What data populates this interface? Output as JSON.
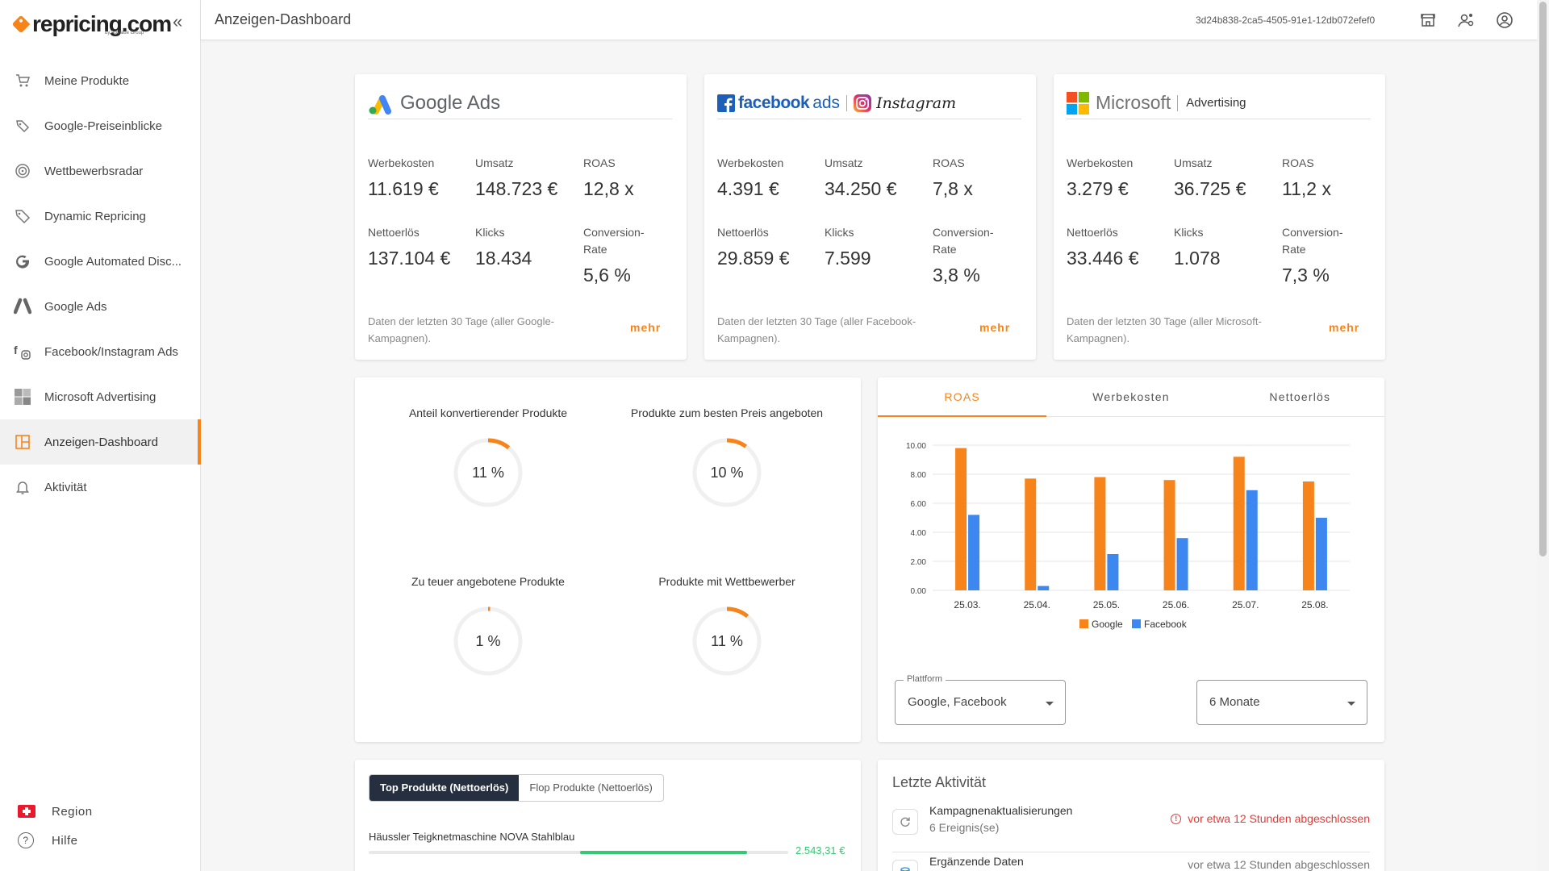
{
  "brand": {
    "name": "repricing.com",
    "sub": "by AdValue Group"
  },
  "sidebar": {
    "items": [
      {
        "label": "Meine Produkte",
        "icon": "cart-icon"
      },
      {
        "label": "Google-Preiseinblicke",
        "icon": "price-tags-icon"
      },
      {
        "label": "Wettbewerbsradar",
        "icon": "radar-icon"
      },
      {
        "label": "Dynamic Repricing",
        "icon": "tag-icon"
      },
      {
        "label": "Google Automated Disc...",
        "icon": "google-g-icon"
      },
      {
        "label": "Google Ads",
        "icon": "google-ads-icon"
      },
      {
        "label": "Facebook/Instagram Ads",
        "icon": "facebook-instagram-icon"
      },
      {
        "label": "Microsoft Advertising",
        "icon": "microsoft-icon"
      },
      {
        "label": "Anzeigen-Dashboard",
        "icon": "dashboard-icon",
        "active": true
      },
      {
        "label": "Aktivität",
        "icon": "bell-icon"
      }
    ],
    "region_label": "Region",
    "help_label": "Hilfe",
    "help_glyph": "?"
  },
  "topbar": {
    "title": "Anzeigen-Dashboard",
    "user_id": "3d24b838-2ca5-4505-91e1-12db072efef0"
  },
  "ad_cards": [
    {
      "platform": "Google Ads",
      "metrics": {
        "werbekosten_label": "Werbekosten",
        "werbekosten": "11.619 €",
        "umsatz_label": "Umsatz",
        "umsatz": "148.723 €",
        "roas_label": "ROAS",
        "roas": "12,8 x",
        "nettoerloes_label": "Nettoerlös",
        "nettoerloes": "137.104 €",
        "klicks_label": "Klicks",
        "klicks": "18.434",
        "cr_label": "Conversion-Rate",
        "cr": "5,6 %"
      },
      "note": "Daten der letzten 30 Tage (aller Google-Kampagnen).",
      "mehr": "mehr"
    },
    {
      "platform_fb": "facebook",
      "platform_fb_ads": "ads",
      "platform_insta": "Instagram",
      "metrics": {
        "werbekosten_label": "Werbekosten",
        "werbekosten": "4.391 €",
        "umsatz_label": "Umsatz",
        "umsatz": "34.250 €",
        "roas_label": "ROAS",
        "roas": "7,8 x",
        "nettoerloes_label": "Nettoerlös",
        "nettoerloes": "29.859 €",
        "klicks_label": "Klicks",
        "klicks": "7.599",
        "cr_label": "Conversion-Rate",
        "cr": "3,8 %"
      },
      "note": "Daten der letzten 30 Tage (aller Facebook-Kampagnen).",
      "mehr": "mehr"
    },
    {
      "platform_ms": "Microsoft",
      "platform_ms_adv": "Advertising",
      "metrics": {
        "werbekosten_label": "Werbekosten",
        "werbekosten": "3.279 €",
        "umsatz_label": "Umsatz",
        "umsatz": "36.725 €",
        "roas_label": "ROAS",
        "roas": "11,2 x",
        "nettoerloes_label": "Nettoerlös",
        "nettoerloes": "33.446 €",
        "klicks_label": "Klicks",
        "klicks": "1.078",
        "cr_label": "Conversion-Rate",
        "cr": "7,3 %"
      },
      "note": "Daten der letzten 30 Tage (aller Microsoft-Kampagnen).",
      "mehr": "mehr"
    }
  ],
  "kpis": [
    {
      "label": "Anteil konvertierender Produkte",
      "value": "11 %",
      "fraction": 0.11
    },
    {
      "label": "Produkte zum besten Preis angeboten",
      "value": "10 %",
      "fraction": 0.1
    },
    {
      "label": "Zu teuer angebotene Produkte",
      "value": "1 %",
      "fraction": 0.01
    },
    {
      "label": "Produkte mit Wettbewerber",
      "value": "11 %",
      "fraction": 0.11
    }
  ],
  "chart_tabs": [
    "ROAS",
    "Werbekosten",
    "Nettoerlös"
  ],
  "chart_data": {
    "type": "bar",
    "categories": [
      "25.03.",
      "25.04.",
      "25.05.",
      "25.06.",
      "25.07.",
      "25.08."
    ],
    "series": [
      {
        "name": "Google",
        "values": [
          9.8,
          7.7,
          7.8,
          7.6,
          9.2,
          7.5
        ],
        "color": "#f7841a"
      },
      {
        "name": "Facebook",
        "values": [
          5.2,
          0.3,
          2.5,
          3.6,
          6.9,
          5.0
        ],
        "color": "#3c87f0"
      }
    ],
    "ylim": [
      0,
      10
    ],
    "yticks": [
      "0.00",
      "2.00",
      "4.00",
      "6.00",
      "8.00",
      "10.00"
    ],
    "legend": "bottom"
  },
  "filters": {
    "platform_label": "Plattform",
    "platform_value": "Google, Facebook",
    "period_value": "6 Monate"
  },
  "products": {
    "tab_top": "Top Produkte (Nettoerlös)",
    "tab_flop": "Flop Produkte (Nettoerlös)",
    "items": [
      {
        "name": "Häussler Teigknetmaschine NOVA Stahlblau",
        "value": "2.543,31 €"
      }
    ]
  },
  "activity": {
    "title": "Letzte Aktivität",
    "items": [
      {
        "name": "Kampagnenaktualisierungen",
        "sub": "6 Ereignis(se)",
        "status": "vor etwa 12 Stunden abgeschlossen"
      },
      {
        "name": "Ergänzende Daten",
        "status": "vor etwa 12 Stunden abgeschlossen"
      }
    ]
  }
}
